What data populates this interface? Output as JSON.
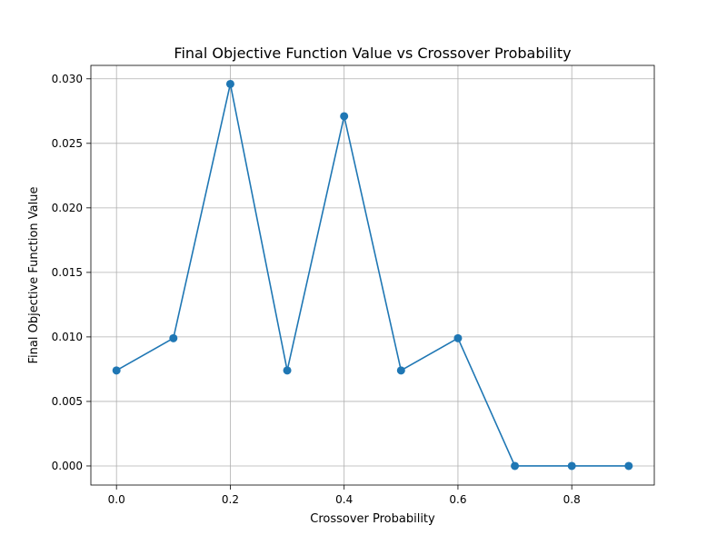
{
  "chart_data": {
    "type": "line",
    "title": "Final Objective Function Value vs Crossover Probability",
    "xlabel": "Crossover Probability",
    "ylabel": "Final Objective Function Value",
    "xlim": [
      -0.045,
      0.945
    ],
    "ylim": [
      -0.00148,
      0.03104
    ],
    "x_ticks": [
      0.0,
      0.2,
      0.4,
      0.6,
      0.8
    ],
    "x_tick_labels": [
      "0.0",
      "0.2",
      "0.4",
      "0.6",
      "0.8"
    ],
    "y_ticks": [
      0.0,
      0.005,
      0.01,
      0.015,
      0.02,
      0.025,
      0.03
    ],
    "y_tick_labels": [
      "0.000",
      "0.005",
      "0.010",
      "0.015",
      "0.020",
      "0.025",
      "0.030"
    ],
    "grid": true,
    "series": [
      {
        "color": "#1f77b4",
        "marker": "circle",
        "x": [
          0.0,
          0.1,
          0.2,
          0.3,
          0.4,
          0.5,
          0.6,
          0.7,
          0.8,
          0.9
        ],
        "y": [
          0.0074,
          0.0099,
          0.0296,
          0.0074,
          0.0271,
          0.0074,
          0.0099,
          0.0,
          0.0,
          0.0
        ]
      }
    ]
  }
}
